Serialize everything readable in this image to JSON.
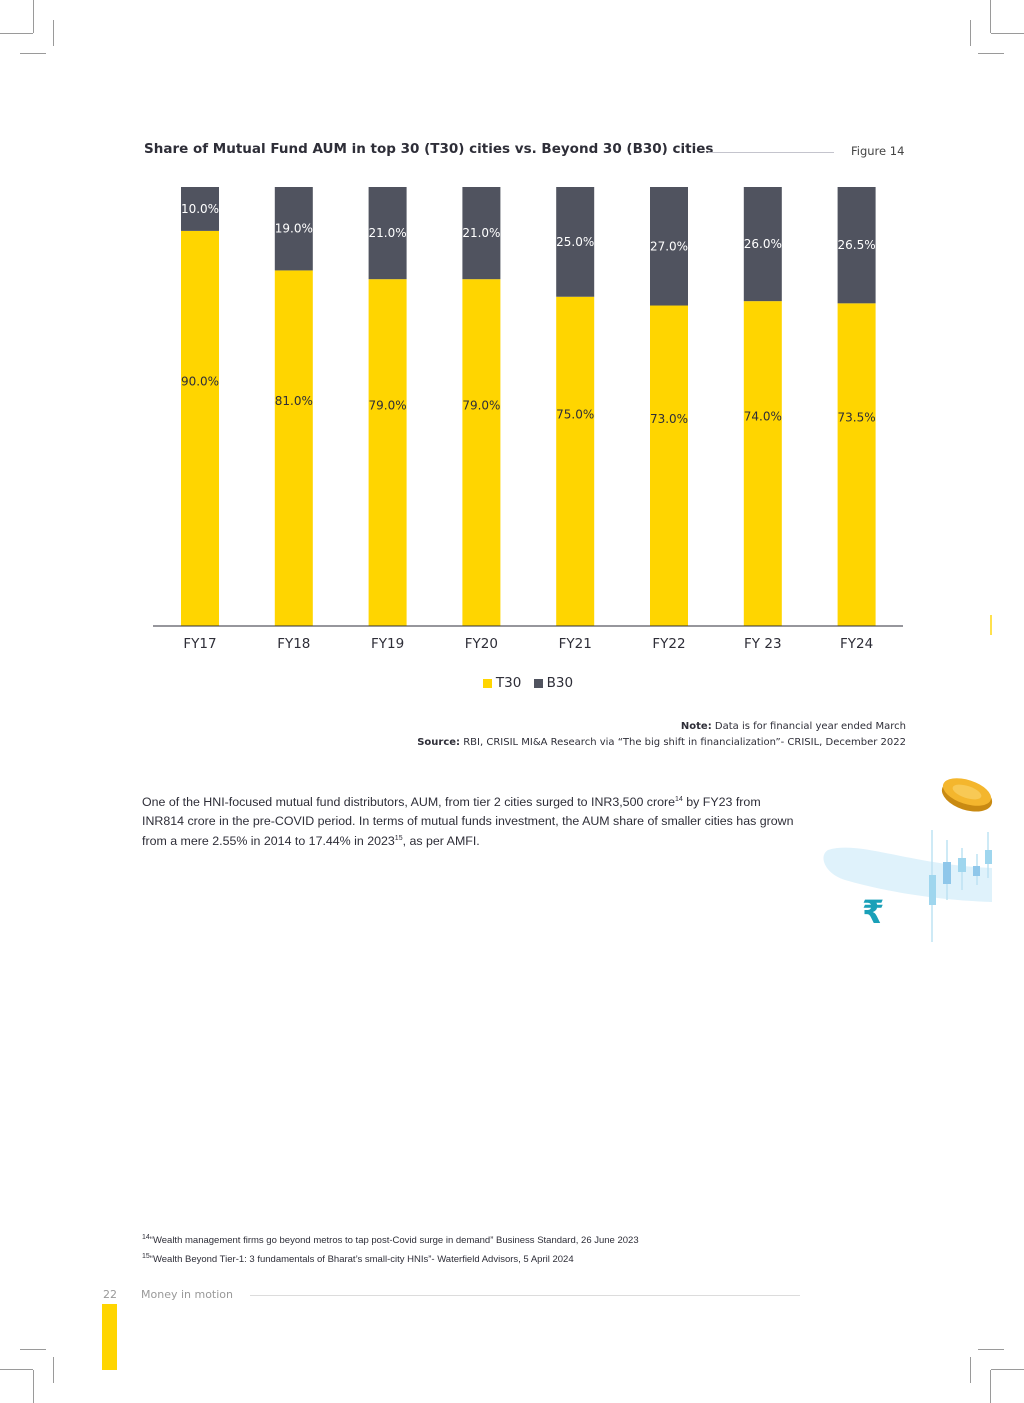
{
  "chart_data": {
    "type": "bar",
    "stacked": true,
    "title": "Share of Mutual Fund AUM in top 30 (T30) cities vs. Beyond 30 (B30) cities",
    "figure_label": "Figure 14",
    "categories": [
      "FY17",
      "FY18",
      "FY19",
      "FY20",
      "FY21",
      "FY22",
      "FY 23",
      "FY24"
    ],
    "series": [
      {
        "name": "T30",
        "color": "#ffd500",
        "values": [
          90.0,
          81.0,
          79.0,
          79.0,
          75.0,
          73.0,
          74.0,
          73.5
        ]
      },
      {
        "name": "B30",
        "color": "#50535f",
        "values": [
          10.0,
          19.0,
          21.0,
          21.0,
          25.0,
          27.0,
          26.0,
          26.5
        ]
      }
    ],
    "value_labels_T30": [
      "90.0%",
      "81.0%",
      "79.0%",
      "79.0%",
      "75.0%",
      "73.0%",
      "74.0%",
      "73.5%"
    ],
    "value_labels_B30": [
      "10.0%",
      "19.0%",
      "21.0%",
      "21.0%",
      "25.0%",
      "27.0%",
      "26.0%",
      "26.5%"
    ],
    "ylim": [
      0,
      100
    ],
    "grid": false,
    "legend_position": "bottom-center"
  },
  "note": {
    "note_label": "Note:",
    "note_text": " Data is for financial year ended March",
    "source_label": "Source:",
    "source_text": " RBI, CRISIL MI&A Research via “The big shift in financialization”- CRISIL, December 2022"
  },
  "body": {
    "p1": "One of the HNI-focused mutual fund distributors, AUM, from tier 2 cities surged to INR3,500 crore",
    "sup1": "14",
    "p2": " by FY23 from INR814 crore in the pre-COVID period. In terms of mutual funds investment, the AUM share of smaller cities has grown from a mere 2.55% in 2014 to 17.44% in 2023",
    "sup2": "15",
    "p3": ", as per AMFI."
  },
  "footnotes": {
    "fn14_num": "14",
    "fn14": "“Wealth management firms go beyond metros to tap post-Covid surge in demand” Business Standard, 26 June 2023",
    "fn15_num": "15",
    "fn15": "“Wealth Beyond Tier-1: 3 fundamentals of Bharat’s small-city HNIs”- Waterfield Advisors, 5 April 2024"
  },
  "footer": {
    "page_number": "22",
    "title": "Money in motion"
  },
  "decoration": {
    "rupee_symbol": "₹"
  }
}
